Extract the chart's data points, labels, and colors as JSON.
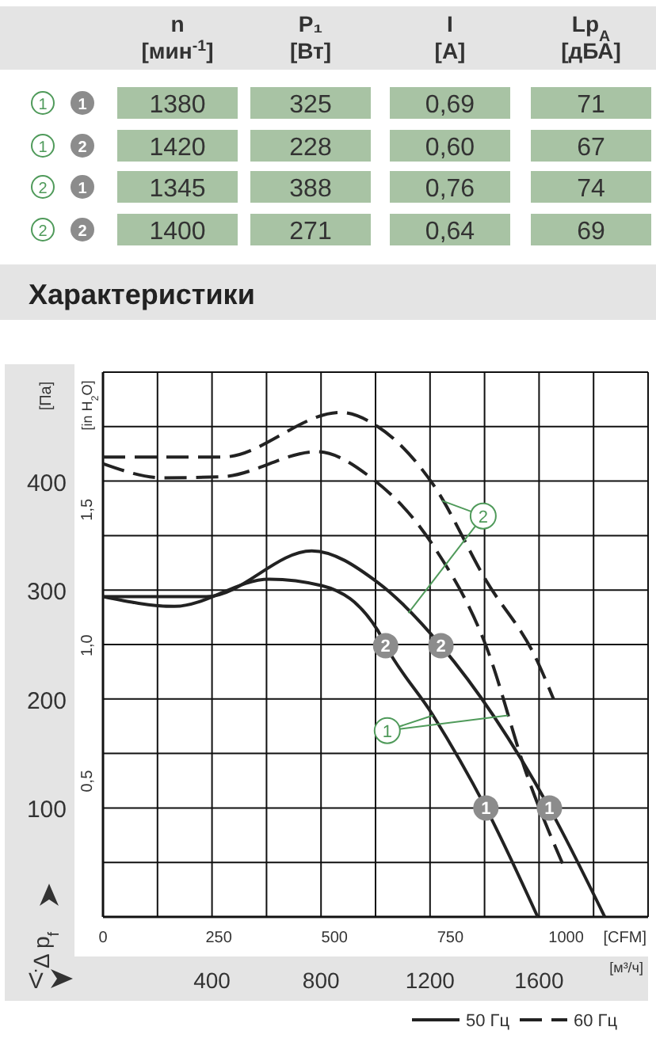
{
  "chart_data": [
    {
      "type": "other",
      "categories": [
        "n\n[мин$^{-1}$]",
        "P₁\n[Вт]",
        "I\n[A]",
        "Lp$_{A}$\n[дБА]"
      ],
      "y_categories": [
        "1",
        "1",
        "2",
        "2"
      ],
      "y2_categories": [
        "1",
        "2",
        "1",
        "2"
      ],
      "cell_labels": [
        [
          "1380",
          "325",
          "0,69",
          "71"
        ],
        [
          "1420",
          "228",
          "0,60",
          "67"
        ],
        [
          "1345",
          "388",
          "0,76",
          "74"
        ],
        [
          "1400",
          "271",
          "0,64",
          "69"
        ]
      ]
    },
    {
      "type": "line",
      "title": "Характеристики",
      "ylabel": "[Па]",
      "y2label": "[in H$_{2}$O]",
      "xlabel": "[м³/ч]",
      "x2label": "[CFM]",
      "xlim": [
        0,
        2000
      ],
      "xticks": [
        {
          "value": 0,
          "label": null
        },
        {
          "value": 200,
          "label": null
        },
        400,
        {
          "value": 600,
          "label": null
        },
        800,
        {
          "value": 1000,
          "label": null
        },
        1200,
        {
          "value": 1400,
          "label": null
        },
        1600,
        {
          "value": 1800,
          "label": null
        },
        {
          "value": 2000,
          "label": null
        }
      ],
      "x2lim": [
        0,
        1177
      ],
      "x2ticks": [
        0,
        250,
        500,
        750,
        1000
      ],
      "ylim": [
        0,
        500
      ],
      "yticks": [
        {
          "value": 0,
          "label": null
        },
        {
          "value": 50,
          "label": null
        },
        100,
        {
          "value": 150,
          "label": null
        },
        200,
        {
          "value": 250,
          "label": null
        },
        300,
        {
          "value": 350,
          "label": null
        },
        400,
        {
          "value": 450,
          "label": null
        },
        {
          "value": 500,
          "label": null
        }
      ],
      "y2lim": [
        0,
        2.007
      ],
      "y2ticks": [
        {
          "value": 0.5,
          "label": "0,5"
        },
        {
          "value": 1,
          "label": "1,0"
        },
        {
          "value": 1.5,
          "label": "1,5"
        }
      ],
      "grid": true,
      "legend": "bottom right",
      "marker": "none",
      "series": [
        {
          "name": "50 Гц",
          "color": "#222222",
          "line_style": "solid",
          "x": [
            0,
            380,
            766,
            1008,
            1240,
            1638,
            1841
          ],
          "values": [
            294,
            294,
            336,
            307,
            249,
            100,
            0
          ]
        },
        {
          "color": "#222222",
          "line_style": "solid",
          "x": [
            0,
            262,
            610,
            804,
            1008,
            1037,
            1211,
            1405,
            1595
          ],
          "values": [
            294,
            285,
            310,
            304,
            263,
            249,
            185,
            100,
            0
          ]
        },
        {
          "name": "60 Гц",
          "color": "#222222",
          "line_style": "dashed",
          "x": [
            0,
            436,
            872,
            1008,
            1211,
            1405,
            1595,
            1653
          ],
          "values": [
            422,
            422,
            463,
            450,
            397,
            309,
            234,
            200
          ]
        },
        {
          "color": "#222222",
          "line_style": "dashed",
          "x": [
            0,
            223,
            436,
            785,
            979,
            1211,
            1405,
            1560,
            1686
          ],
          "values": [
            416,
            403,
            404,
            427,
            404,
            341,
            249,
            127,
            49
          ]
        }
      ],
      "annotations": [
        "Δ p$_{f}$",
        "V̇",
        {
          "text": "2",
          "x": 1240,
          "y": 249
        },
        {
          "text": "1",
          "x": 1638,
          "y": 100
        },
        {
          "text": "2",
          "x": 1037,
          "y": 249
        },
        {
          "text": "1",
          "x": 1405,
          "y": 100
        },
        {
          "text": "1",
          "x": 1043,
          "y": 171
        },
        {
          "text": "2",
          "x": 1395,
          "y": 368
        }
      ]
    }
  ]
}
